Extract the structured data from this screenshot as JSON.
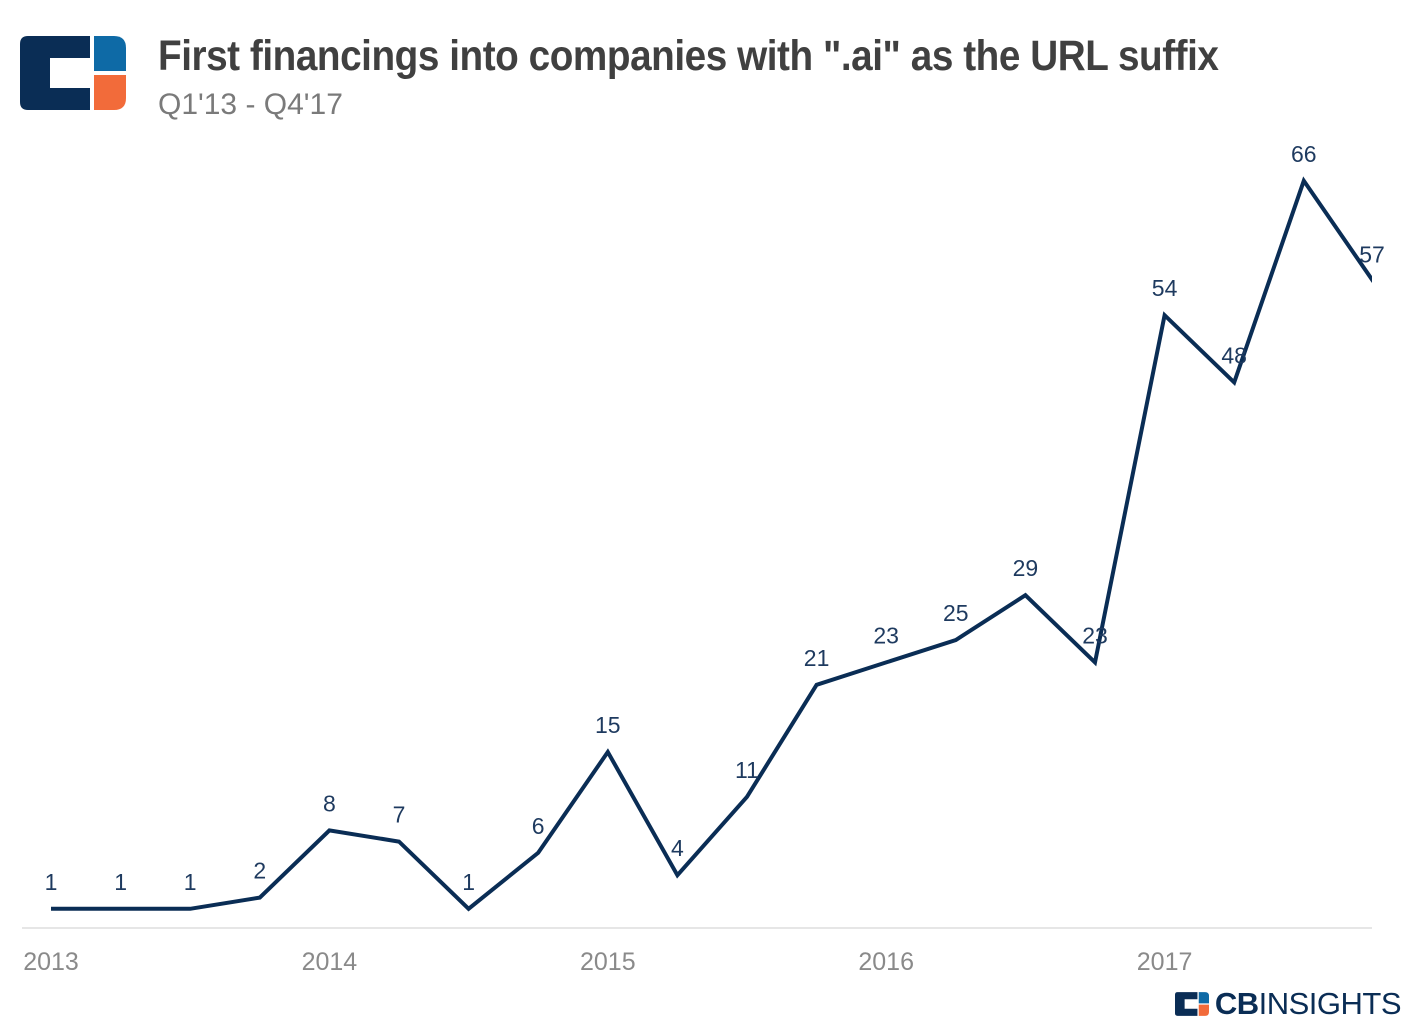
{
  "header": {
    "title": "First financings into companies with \".ai\" as the URL suffix",
    "subtitle": "Q1'13 - Q4'17"
  },
  "brand": {
    "logo_icon": "cb-insights-logo-icon",
    "name_bold": "CB",
    "name_regular": "INSIGHTS"
  },
  "colors": {
    "line": "#0a2d55",
    "logo_navy": "#0a2d55",
    "logo_blue": "#0e6aa6",
    "logo_orange": "#f26b3a",
    "axis_text": "#8a8a8a"
  },
  "chart_data": {
    "type": "line",
    "x": [
      "Q1'13",
      "Q2'13",
      "Q3'13",
      "Q4'13",
      "Q1'14",
      "Q2'14",
      "Q3'14",
      "Q4'14",
      "Q1'15",
      "Q2'15",
      "Q3'15",
      "Q4'15",
      "Q1'16",
      "Q2'16",
      "Q3'16",
      "Q4'16",
      "Q1'17",
      "Q2'17",
      "Q3'17",
      "Q4'17"
    ],
    "values": [
      1,
      1,
      1,
      2,
      8,
      7,
      1,
      6,
      15,
      4,
      11,
      21,
      23,
      25,
      29,
      23,
      54,
      48,
      66,
      57
    ],
    "tick_labels": [
      "2013",
      "2014",
      "2015",
      "2016",
      "2017"
    ],
    "tick_positions": [
      0,
      4,
      8,
      12,
      16
    ],
    "ylim": [
      0,
      70
    ],
    "grid": false,
    "legend": "none",
    "data_labels": true
  }
}
